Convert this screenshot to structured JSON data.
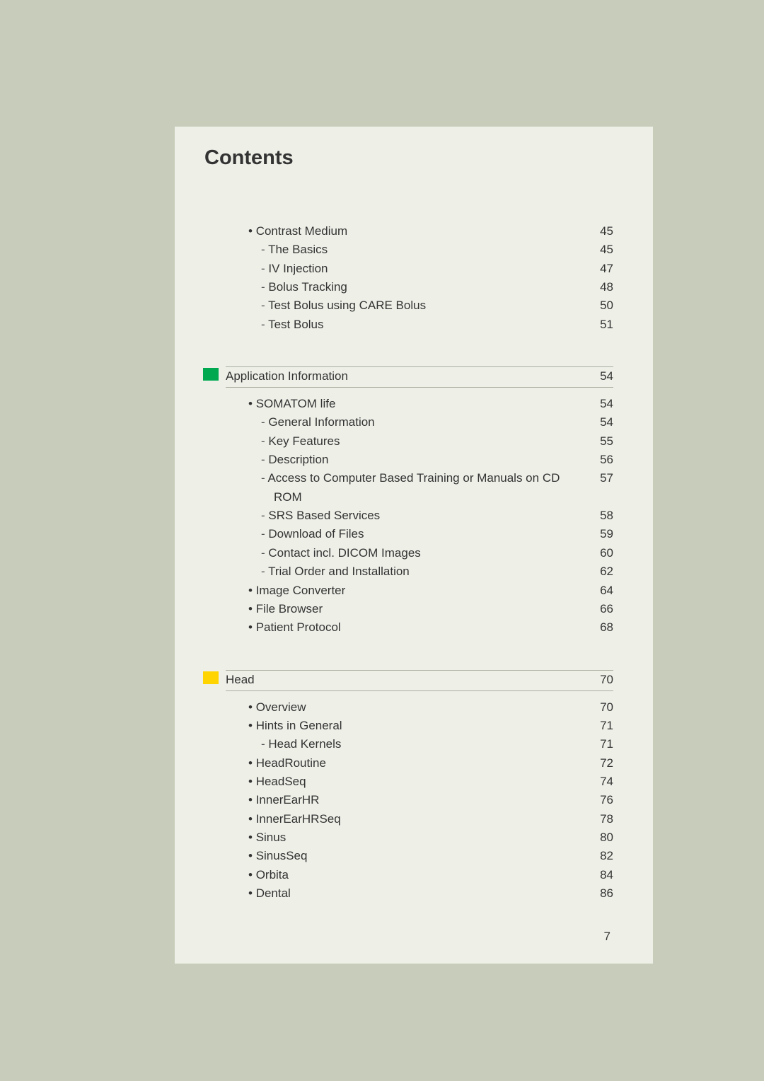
{
  "colors": {
    "page_bg": "#c7cdba",
    "panel_bg": "#eef0e8",
    "rule": "#a9afa0",
    "text": "#333333",
    "square_green": "#00a850",
    "square_yellow": "#ffd400"
  },
  "typography": {
    "title_fontsize": 29,
    "title_weight": 600,
    "body_fontsize": 17,
    "line_height": 1.55
  },
  "title": "Contents",
  "page_number": "7",
  "sections": [
    {
      "header": null,
      "items": [
        {
          "level": 1,
          "label": "Contrast Medium",
          "page": "45"
        },
        {
          "level": 2,
          "label": "The Basics",
          "page": "45"
        },
        {
          "level": 2,
          "label": "IV Injection",
          "page": "47"
        },
        {
          "level": 2,
          "label": "Bolus Tracking",
          "page": "48"
        },
        {
          "level": 2,
          "label": "Test Bolus using CARE Bolus",
          "page": "50"
        },
        {
          "level": 2,
          "label": "Test Bolus",
          "page": "51"
        }
      ]
    },
    {
      "header": "Application Information",
      "header_page": "54",
      "header_color": "green",
      "items": [
        {
          "level": 1,
          "label": "SOMATOM life",
          "page": "54"
        },
        {
          "level": 2,
          "label": "General Information",
          "page": "54"
        },
        {
          "level": 2,
          "label": "Key Features",
          "page": "55"
        },
        {
          "level": 2,
          "label": "Description",
          "page": "56"
        },
        {
          "level": 2,
          "label": "Access to Computer Based Training or Manuals on CD ROM",
          "page": "57"
        },
        {
          "level": 2,
          "label": "SRS Based Services",
          "page": "58"
        },
        {
          "level": 2,
          "label": "Download of Files",
          "page": "59"
        },
        {
          "level": 2,
          "label": "Contact incl. DICOM Images",
          "page": "60"
        },
        {
          "level": 2,
          "label": "Trial Order and Installation",
          "page": "62"
        },
        {
          "level": 1,
          "label": "Image Converter",
          "page": "64"
        },
        {
          "level": 1,
          "label": "File Browser",
          "page": "66"
        },
        {
          "level": 1,
          "label": "Patient Protocol",
          "page": "68"
        }
      ]
    },
    {
      "header": "Head",
      "header_page": "70",
      "header_color": "yellow",
      "items": [
        {
          "level": 1,
          "label": "Overview",
          "page": "70"
        },
        {
          "level": 1,
          "label": "Hints in General",
          "page": "71"
        },
        {
          "level": 2,
          "label": "Head Kernels",
          "page": "71"
        },
        {
          "level": 1,
          "label": "HeadRoutine",
          "page": "72"
        },
        {
          "level": 1,
          "label": "HeadSeq",
          "page": "74"
        },
        {
          "level": 1,
          "label": "InnerEarHR",
          "page": "76"
        },
        {
          "level": 1,
          "label": "InnerEarHRSeq",
          "page": "78"
        },
        {
          "level": 1,
          "label": "Sinus",
          "page": "80"
        },
        {
          "level": 1,
          "label": "SinusSeq",
          "page": "82"
        },
        {
          "level": 1,
          "label": "Orbita",
          "page": "84"
        },
        {
          "level": 1,
          "label": "Dental",
          "page": "86"
        }
      ]
    }
  ]
}
